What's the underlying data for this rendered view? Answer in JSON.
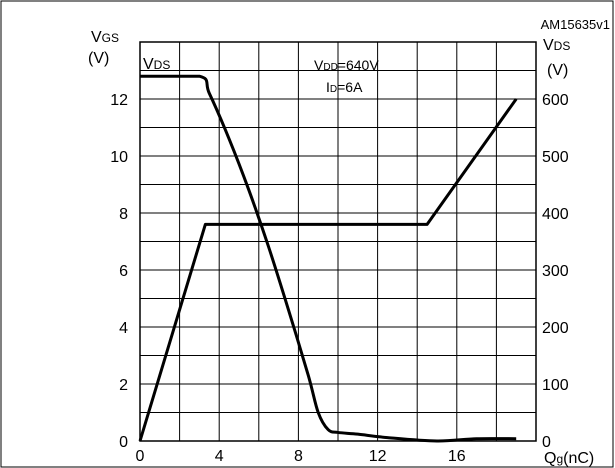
{
  "chart_data": {
    "type": "line",
    "id_label": "AM15635v1",
    "left_axis": {
      "label": "VGS",
      "label_main": "V",
      "label_sub": "GS",
      "unit": "(V)",
      "ylim": [
        0,
        14
      ],
      "ticks": [
        0,
        2,
        4,
        6,
        8,
        10,
        12
      ]
    },
    "right_axis": {
      "label": "VDS",
      "label_main": "V",
      "label_sub": "DS",
      "unit": "(V)",
      "ylim": [
        0,
        700
      ],
      "ticks": [
        0,
        100,
        200,
        300,
        400,
        500,
        600
      ]
    },
    "x_axis": {
      "label": "Qg(nC)",
      "label_main": "Q",
      "label_sub": "g",
      "label_unit": "(nC)",
      "xlim": [
        0,
        20
      ],
      "ticks": [
        0,
        4,
        8,
        12,
        16
      ]
    },
    "conditions": {
      "vdd": "VDD=640V",
      "vdd_main": "V",
      "vdd_sub": "DD",
      "vdd_val": "=640V",
      "id": "ID=6A",
      "id_main": "I",
      "id_sub": "D",
      "id_val": "=6A"
    },
    "series": [
      {
        "name": "VDS",
        "label_main": "V",
        "label_sub": "DS",
        "axis": "right",
        "x": [
          0,
          3.0,
          3.5,
          4.5,
          5.5,
          6.5,
          7.5,
          8.5,
          9.0,
          9.5,
          10.0,
          11.0,
          12.5,
          15.0,
          17.0,
          19.0
        ],
        "y": [
          640,
          640,
          610,
          530,
          440,
          340,
          230,
          115,
          50,
          20,
          15,
          12,
          6,
          0,
          4,
          4
        ]
      },
      {
        "name": "VGS",
        "axis": "left",
        "x": [
          0,
          3.3,
          14.5,
          19.0
        ],
        "y": [
          0,
          7.6,
          7.6,
          12.0
        ]
      }
    ]
  }
}
